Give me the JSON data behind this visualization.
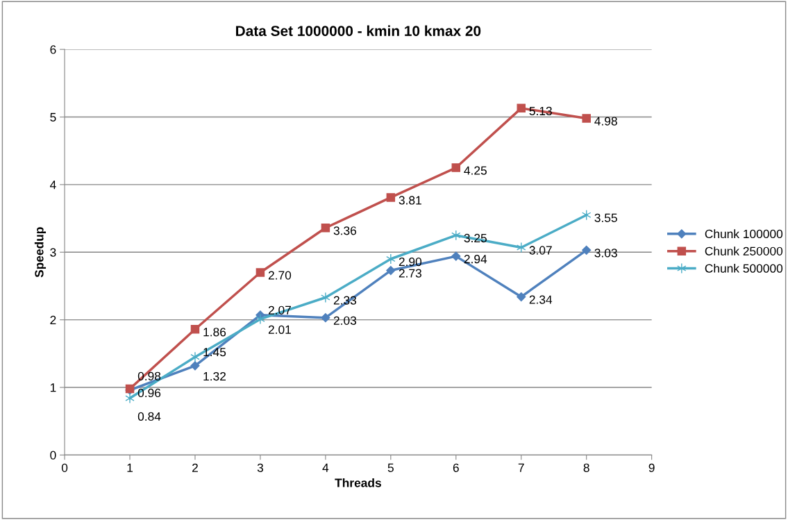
{
  "chart_data": {
    "type": "line",
    "title": "Data Set 1000000 - kmin 10 kmax 20",
    "xlabel": "Threads",
    "ylabel": "Speedup",
    "x": [
      1,
      2,
      3,
      4,
      5,
      6,
      7,
      8
    ],
    "series": [
      {
        "name": "Chunk 100000",
        "color": "#4f81bd",
        "marker": "diamond",
        "values": [
          0.96,
          1.32,
          2.07,
          2.03,
          2.73,
          2.94,
          2.34,
          3.03
        ],
        "value_labels": [
          "0.96",
          "1.32",
          "2.07",
          "2.03",
          "2.73",
          "2.94",
          "2.34",
          "3.03"
        ]
      },
      {
        "name": "Chunk 250000",
        "color": "#c0504d",
        "marker": "square",
        "values": [
          0.98,
          1.86,
          2.7,
          3.36,
          3.81,
          4.25,
          5.13,
          4.98
        ],
        "value_labels": [
          "0.98",
          "1.86",
          "2.70",
          "3.36",
          "3.81",
          "4.25",
          "5.13",
          "4.98"
        ]
      },
      {
        "name": "Chunk 500000",
        "color": "#4bacc6",
        "marker": "cross",
        "values": [
          0.84,
          1.45,
          2.01,
          2.33,
          2.9,
          3.25,
          3.07,
          3.55
        ],
        "value_labels": [
          "0.84",
          "1.45",
          "2.01",
          "2.33",
          "2.90",
          "3.25",
          "3.07",
          "3.55"
        ]
      }
    ],
    "xlim": [
      0,
      9
    ],
    "xticks": [
      0,
      1,
      2,
      3,
      4,
      5,
      6,
      7,
      8,
      9
    ],
    "ylim": [
      0,
      6
    ],
    "yticks": [
      0,
      1,
      2,
      3,
      4,
      5,
      6
    ],
    "grid": "y",
    "legend": "right",
    "line_style": "solid"
  }
}
